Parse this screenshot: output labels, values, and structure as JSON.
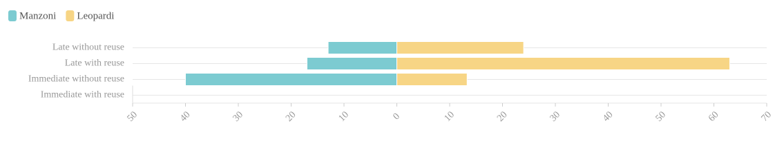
{
  "chart_data": {
    "type": "bar",
    "orientation": "horizontal",
    "stacked": "diverging",
    "categories": [
      "Late without reuse",
      "Late with reuse",
      "Immediate without reuse",
      "Immediate with reuse"
    ],
    "series": [
      {
        "name": "Manzoni",
        "color": "#7ccbd1",
        "values": [
          -13,
          -17,
          -40,
          0
        ]
      },
      {
        "name": "Leopardi",
        "color": "#f7d585",
        "values": [
          24,
          63,
          13.3,
          0
        ]
      }
    ],
    "xlim": [
      -50,
      70
    ],
    "xticks": [
      {
        "value": -50,
        "label": "50"
      },
      {
        "value": -40,
        "label": "40"
      },
      {
        "value": -30,
        "label": "30"
      },
      {
        "value": -20,
        "label": "20"
      },
      {
        "value": -10,
        "label": "10"
      },
      0,
      10,
      20,
      30,
      40,
      50,
      60,
      70
    ],
    "legend": "top-left"
  }
}
